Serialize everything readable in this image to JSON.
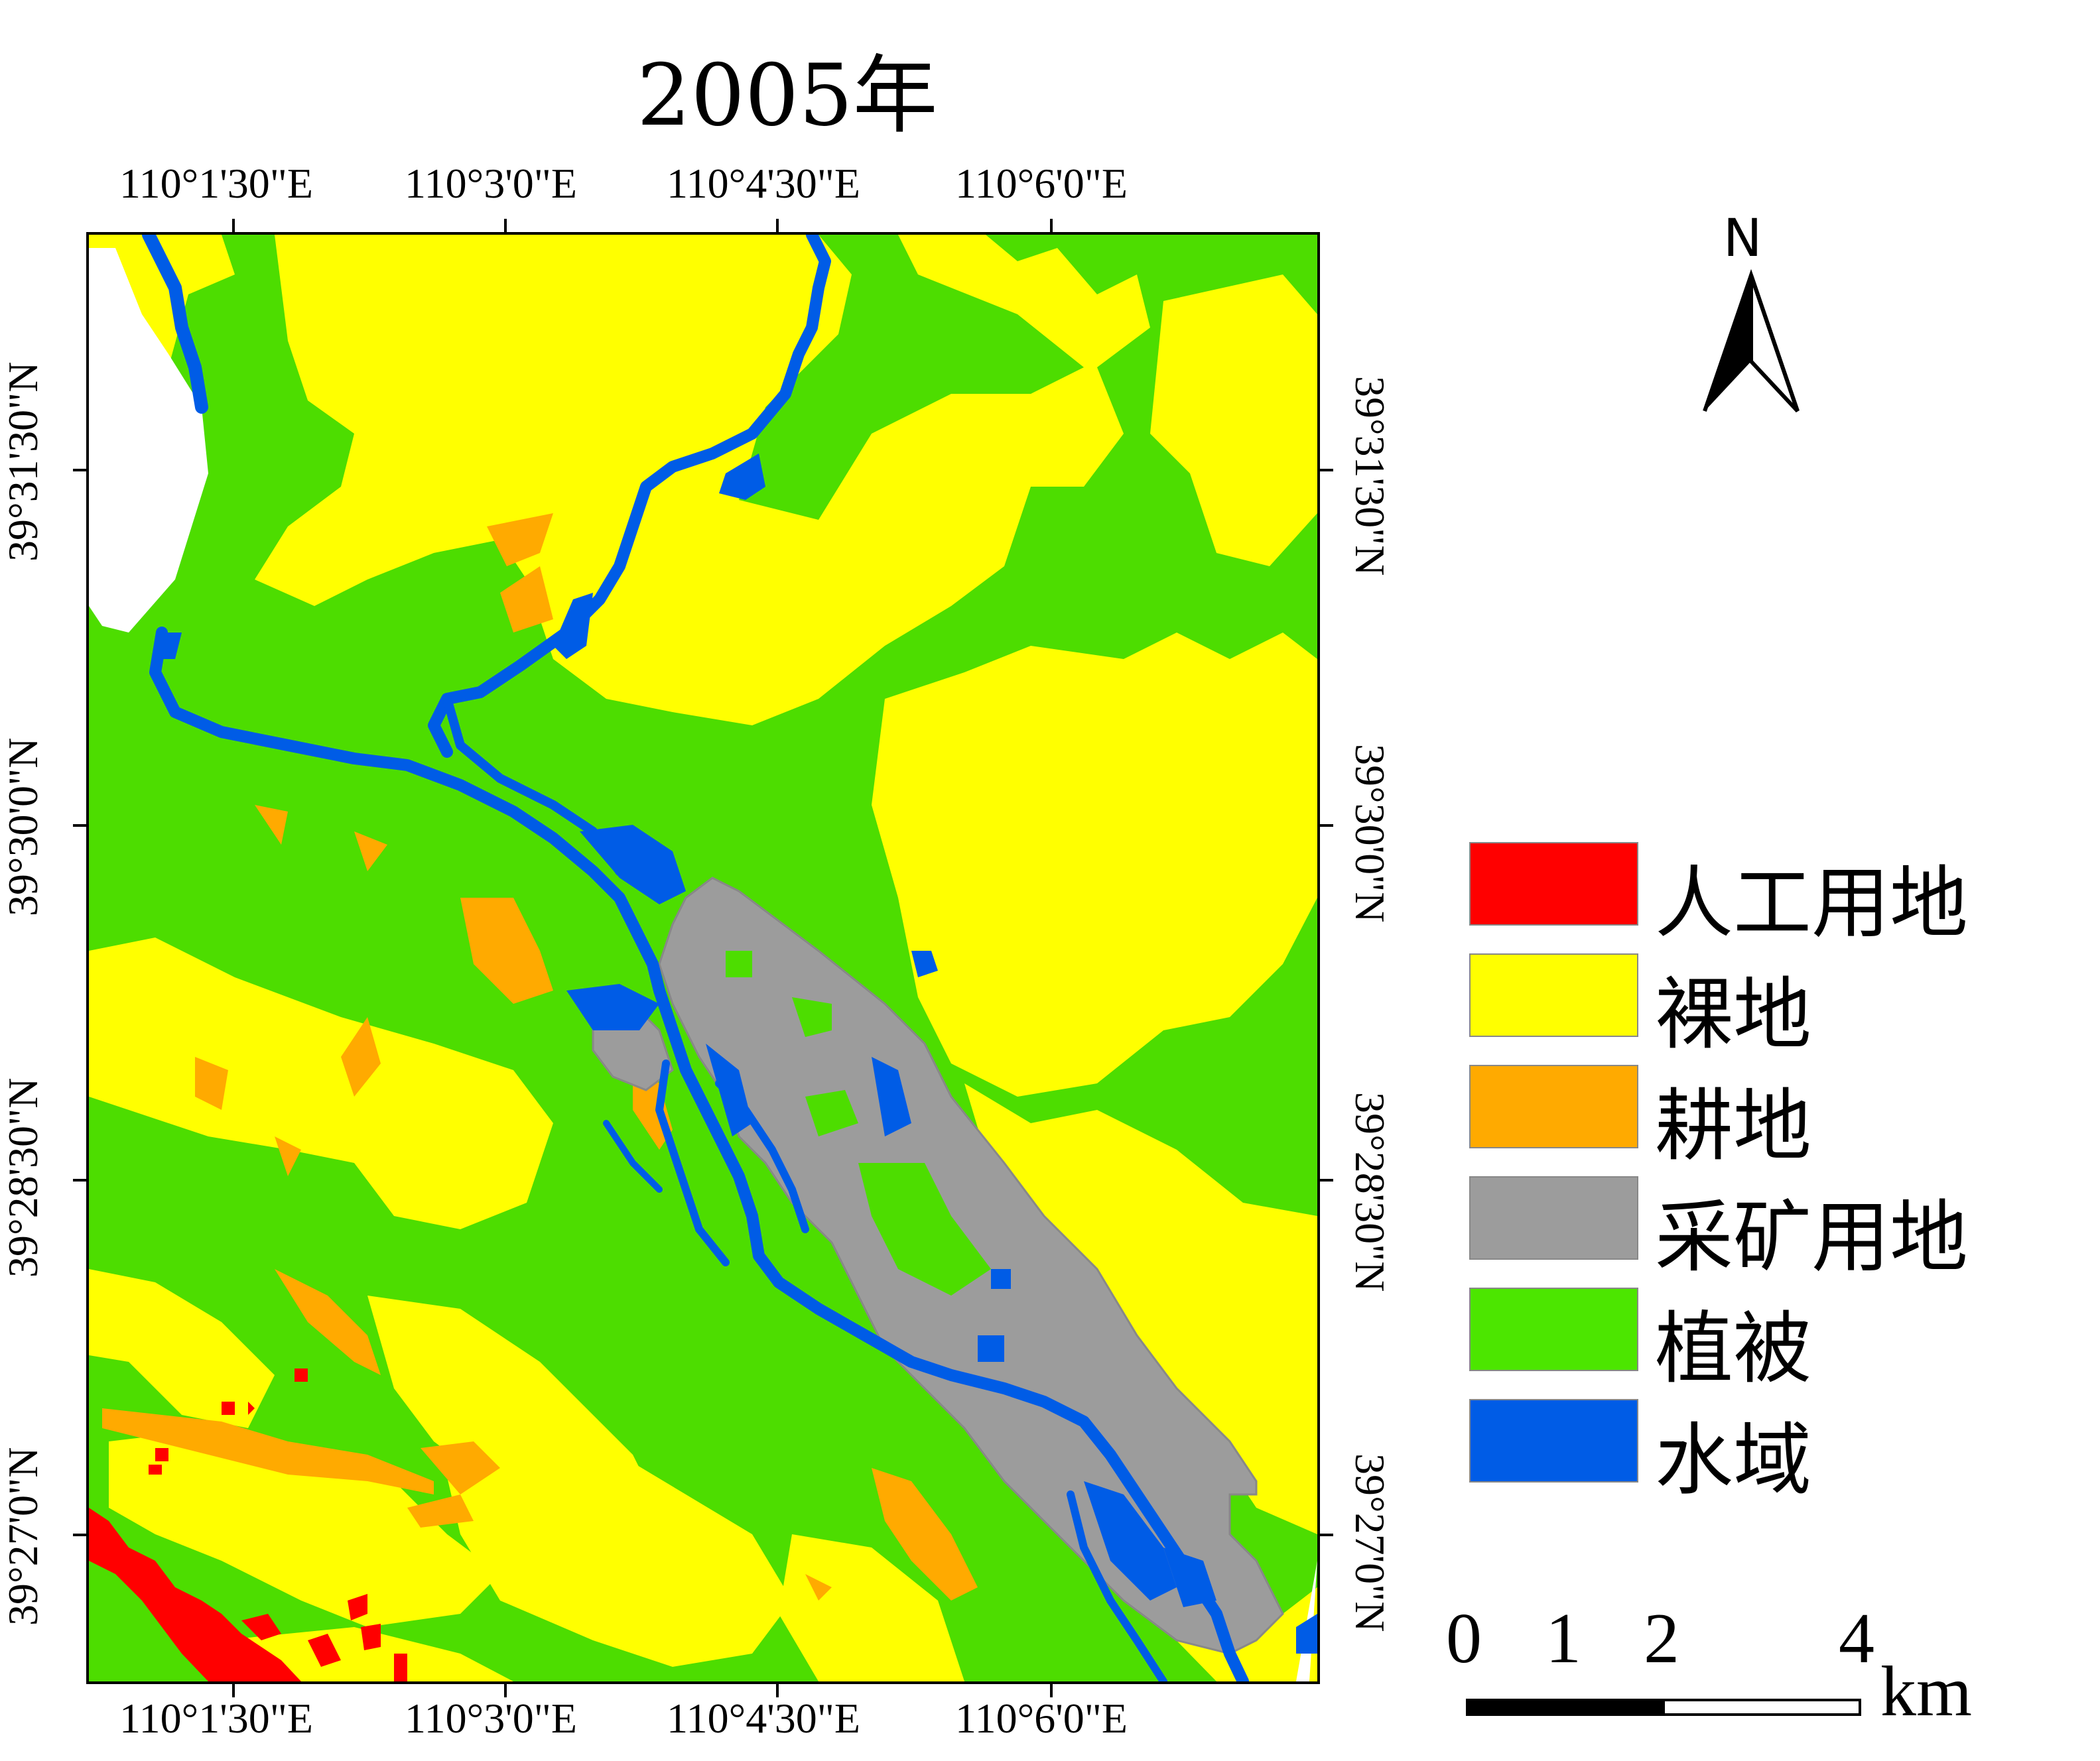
{
  "title": "2005年",
  "lon_labels": [
    "110°1'30\"E",
    "110°3'0\"E",
    "110°4'30\"E",
    "110°6'0\"E"
  ],
  "lat_labels": [
    "39°31'30\"N",
    "39°30'0\"N",
    "39°28'30\"N",
    "39°27'0\"N"
  ],
  "legend": [
    {
      "label": "人工用地",
      "color": "#ff0000"
    },
    {
      "label": "裸地",
      "color": "#ffff00"
    },
    {
      "label": "耕地",
      "color": "#ffaa00"
    },
    {
      "label": "采矿用地",
      "color": "#9c9c9c"
    },
    {
      "label": "植被",
      "color": "#4ce600"
    },
    {
      "label": "水域",
      "color": "#005ce6"
    }
  ],
  "north_label": "N",
  "scale": {
    "ticks": [
      "0",
      "1",
      "2",
      "4"
    ],
    "unit": "km"
  }
}
